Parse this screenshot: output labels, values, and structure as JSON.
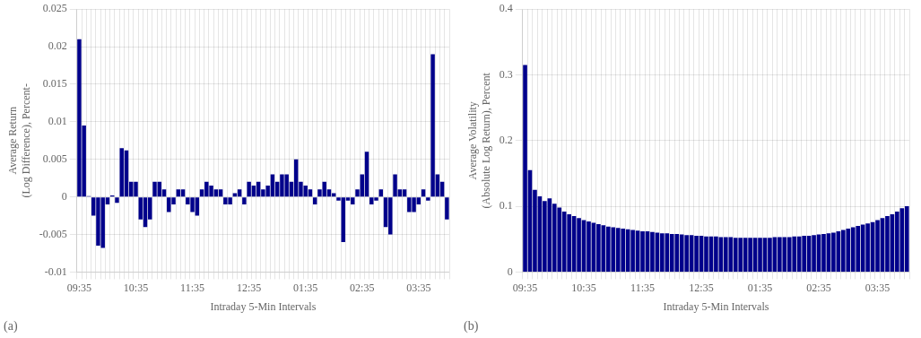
{
  "chart_data": [
    {
      "type": "bar",
      "xlabel": "Intraday 5-Min Intervals",
      "ylabel": "Average Return\n(Log Difference), Percent-",
      "annotation": "(a)",
      "color": "#00008B",
      "grid": true,
      "ylim": [
        -0.01,
        0.025
      ],
      "yticks": [
        -0.01,
        -0.005,
        0,
        0.005,
        0.01,
        0.015,
        0.02,
        0.025
      ],
      "categories": [
        "09:35",
        null,
        null,
        null,
        null,
        null,
        null,
        null,
        null,
        null,
        null,
        null,
        "10:35",
        null,
        null,
        null,
        null,
        null,
        null,
        null,
        null,
        null,
        null,
        null,
        "11:35",
        null,
        null,
        null,
        null,
        null,
        null,
        null,
        null,
        null,
        null,
        null,
        "12:35",
        null,
        null,
        null,
        null,
        null,
        null,
        null,
        null,
        null,
        null,
        null,
        "01:35",
        null,
        null,
        null,
        null,
        null,
        null,
        null,
        null,
        null,
        null,
        null,
        "02:35",
        null,
        null,
        null,
        null,
        null,
        null,
        null,
        null,
        null,
        null,
        null,
        "03:35",
        null,
        null,
        null,
        null,
        null,
        null
      ],
      "values": [
        0.021,
        0.0095,
        0.0001,
        -0.0025,
        -0.0065,
        -0.0068,
        -0.001,
        0.0002,
        -0.0008,
        0.0065,
        0.0062,
        0.002,
        0.002,
        -0.003,
        -0.004,
        -0.003,
        0.002,
        0.002,
        0.001,
        -0.002,
        -0.001,
        0.001,
        0.001,
        -0.001,
        -0.002,
        -0.0025,
        0.001,
        0.002,
        0.0015,
        0.001,
        0.001,
        -0.001,
        -0.001,
        0.0005,
        0.001,
        -0.001,
        0.002,
        0.0015,
        0.002,
        0.001,
        0.0015,
        0.003,
        0.002,
        0.003,
        0.003,
        0.002,
        0.005,
        0.002,
        0.0015,
        0.001,
        -0.001,
        0.001,
        0.002,
        0.001,
        0.0005,
        -0.0005,
        -0.006,
        -0.0005,
        -0.001,
        0.001,
        0.003,
        0.006,
        -0.001,
        -0.0005,
        0.001,
        -0.004,
        -0.005,
        0.003,
        0.001,
        0.001,
        -0.002,
        -0.002,
        -0.001,
        0.001,
        -0.0005,
        0.019,
        0.003,
        0.002,
        -0.003
      ]
    },
    {
      "type": "bar",
      "xlabel": "Intraday 5-Min Intervals",
      "ylabel": "Average Volatility\n(Absolute Log Return), Percent",
      "annotation": "(b)",
      "color": "#00008B",
      "grid": true,
      "ylim": [
        0,
        0.4
      ],
      "yticks": [
        0,
        0.1,
        0.2,
        0.3,
        0.4
      ],
      "categories": [
        "09:35",
        null,
        null,
        null,
        null,
        null,
        null,
        null,
        null,
        null,
        null,
        null,
        "10:35",
        null,
        null,
        null,
        null,
        null,
        null,
        null,
        null,
        null,
        null,
        null,
        "11:35",
        null,
        null,
        null,
        null,
        null,
        null,
        null,
        null,
        null,
        null,
        null,
        "12:35",
        null,
        null,
        null,
        null,
        null,
        null,
        null,
        null,
        null,
        null,
        null,
        "01:35",
        null,
        null,
        null,
        null,
        null,
        null,
        null,
        null,
        null,
        null,
        null,
        "02:35",
        null,
        null,
        null,
        null,
        null,
        null,
        null,
        null,
        null,
        null,
        null,
        "03:35",
        null,
        null,
        null,
        null,
        null,
        null
      ],
      "values": [
        0.315,
        0.155,
        0.125,
        0.115,
        0.108,
        0.112,
        0.104,
        0.098,
        0.092,
        0.088,
        0.085,
        0.082,
        0.079,
        0.077,
        0.075,
        0.073,
        0.071,
        0.069,
        0.068,
        0.067,
        0.066,
        0.065,
        0.064,
        0.063,
        0.062,
        0.062,
        0.061,
        0.06,
        0.059,
        0.059,
        0.058,
        0.058,
        0.057,
        0.056,
        0.056,
        0.055,
        0.055,
        0.054,
        0.054,
        0.054,
        0.053,
        0.053,
        0.053,
        0.052,
        0.052,
        0.052,
        0.052,
        0.052,
        0.052,
        0.052,
        0.052,
        0.053,
        0.053,
        0.053,
        0.053,
        0.054,
        0.054,
        0.055,
        0.055,
        0.056,
        0.057,
        0.058,
        0.059,
        0.06,
        0.062,
        0.064,
        0.066,
        0.068,
        0.07,
        0.072,
        0.074,
        0.076,
        0.079,
        0.082,
        0.085,
        0.088,
        0.092,
        0.097,
        0.1
      ]
    }
  ]
}
